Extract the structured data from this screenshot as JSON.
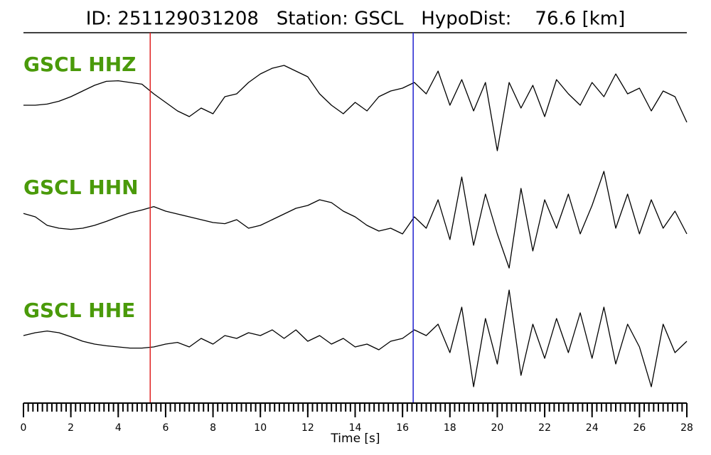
{
  "chart_data": {
    "type": "seismogram",
    "title": "ID: 251129031208   Station: GSCL   HypoDist:    76.6 [km]",
    "xlabel": "Time [s]",
    "xlim": [
      0,
      28
    ],
    "xticks": [
      0,
      2,
      4,
      6,
      8,
      10,
      12,
      14,
      16,
      18,
      20,
      22,
      24,
      26,
      28
    ],
    "xminor": 0.2,
    "ylim": [
      -1,
      1
    ],
    "label_color": "#4a9a0a",
    "x": [
      0,
      0.5,
      1,
      1.5,
      2,
      2.5,
      3,
      3.5,
      4,
      4.5,
      5,
      5.5,
      6,
      6.5,
      7,
      7.5,
      8,
      8.5,
      9,
      9.5,
      10,
      10.5,
      11,
      11.5,
      12,
      12.5,
      13,
      13.5,
      14,
      14.5,
      15,
      15.5,
      16,
      16.5,
      17,
      17.5,
      18,
      18.5,
      19,
      19.5,
      20,
      20.5,
      21,
      21.5,
      22,
      22.5,
      23,
      23.5,
      24,
      24.5,
      25,
      25.5,
      26,
      26.5,
      27,
      27.5,
      28
    ],
    "series": [
      {
        "name": "GSCL HHZ",
        "color": "#000000",
        "values": [
          -0.1,
          -0.1,
          -0.08,
          -0.03,
          0.05,
          0.15,
          0.25,
          0.32,
          0.33,
          0.3,
          0.27,
          0.1,
          -0.05,
          -0.2,
          -0.3,
          -0.15,
          -0.25,
          0.05,
          0.1,
          0.3,
          0.45,
          0.55,
          0.6,
          0.5,
          0.4,
          0.1,
          -0.1,
          -0.25,
          -0.05,
          -0.2,
          0.05,
          0.15,
          0.2,
          0.3,
          0.1,
          0.5,
          -0.1,
          0.35,
          -0.2,
          0.3,
          -0.9,
          0.3,
          -0.15,
          0.25,
          -0.3,
          0.35,
          0.1,
          -0.1,
          0.3,
          0.05,
          0.45,
          0.1,
          0.2,
          -0.2,
          0.15,
          0.05,
          -0.4
        ]
      },
      {
        "name": "GSCL HHN",
        "color": "#000000",
        "values": [
          0.06,
          0,
          -0.15,
          -0.2,
          -0.22,
          -0.2,
          -0.15,
          -0.08,
          0,
          0.07,
          0.12,
          0.18,
          0.1,
          0.05,
          0,
          -0.05,
          -0.1,
          -0.12,
          -0.05,
          -0.2,
          -0.15,
          -0.05,
          0.05,
          0.15,
          0.2,
          0.3,
          0.25,
          0.1,
          0,
          -0.15,
          -0.25,
          -0.2,
          -0.3,
          0,
          -0.2,
          0.3,
          -0.4,
          0.7,
          -0.5,
          0.4,
          -0.3,
          -0.9,
          0.5,
          -0.6,
          0.3,
          -0.2,
          0.4,
          -0.3,
          0.2,
          0.8,
          -0.2,
          0.4,
          -0.3,
          0.3,
          -0.2,
          0.1,
          -0.3
        ]
      },
      {
        "name": "GSCL HHE",
        "color": "#000000",
        "values": [
          0.1,
          0.15,
          0.18,
          0.15,
          0.08,
          0,
          -0.05,
          -0.08,
          -0.1,
          -0.12,
          -0.12,
          -0.1,
          -0.05,
          -0.02,
          -0.1,
          0.05,
          -0.05,
          0.1,
          0.05,
          0.15,
          0.1,
          0.2,
          0.05,
          0.2,
          0,
          0.1,
          -0.05,
          0.05,
          -0.1,
          -0.05,
          -0.15,
          0,
          0.05,
          0.2,
          0.1,
          0.3,
          -0.2,
          0.6,
          -0.8,
          0.4,
          -0.4,
          0.9,
          -0.6,
          0.3,
          -0.3,
          0.4,
          -0.2,
          0.5,
          -0.3,
          0.6,
          -0.4,
          0.3,
          -0.1,
          -0.8,
          0.3,
          -0.2,
          0
        ]
      }
    ],
    "markers": [
      {
        "x": 5.35,
        "color": "#e02020"
      },
      {
        "x": 16.45,
        "color": "#2020d0"
      }
    ]
  }
}
